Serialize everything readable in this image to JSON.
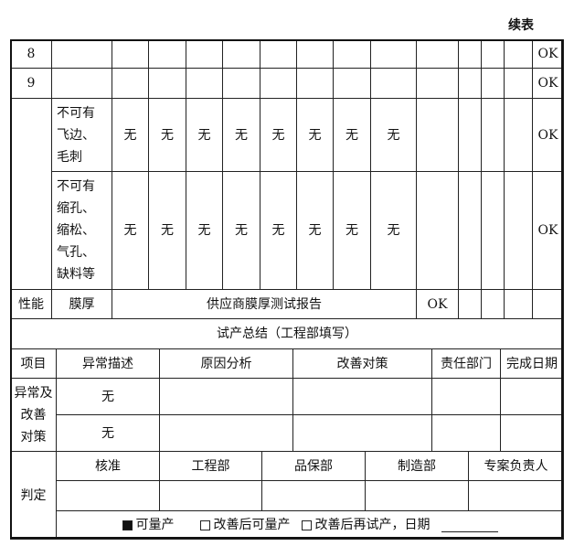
{
  "title": "续表",
  "inspection": {
    "rows": [
      {
        "label": "8",
        "result": "OK"
      },
      {
        "label": "9",
        "result": "OK"
      }
    ],
    "defect_rows": [
      {
        "label": "不可有\n飞边、\n毛刺",
        "values": [
          "无",
          "无",
          "无",
          "无",
          "无",
          "无",
          "无",
          "无"
        ],
        "result": "OK"
      },
      {
        "label": "不可有\n缩孔、\n缩松、\n气孔、\n缺料等",
        "values": [
          "无",
          "无",
          "无",
          "无",
          "无",
          "无",
          "无",
          "无"
        ],
        "result": "OK"
      }
    ],
    "performance": {
      "category": "性能",
      "item": "膜厚",
      "method": "供应商膜厚测试报告",
      "result": "OK"
    }
  },
  "summary": {
    "title": "试产总结（工程部填写）",
    "headers": [
      "项目",
      "异常描述",
      "原因分析",
      "改善对策",
      "责任部门",
      "完成日期"
    ],
    "section_label": "异常及\n改善\n对策",
    "rows": [
      {
        "description": "无"
      },
      {
        "description": "无"
      }
    ]
  },
  "judgement": {
    "label": "判定",
    "headers": [
      "核准",
      "工程部",
      "品保部",
      "制造部",
      "专案负责人"
    ],
    "options": [
      {
        "label": "可量产",
        "checked": true
      },
      {
        "label": "改善后可量产",
        "checked": false
      },
      {
        "label": "改善后再试产，日期",
        "checked": false
      }
    ]
  }
}
